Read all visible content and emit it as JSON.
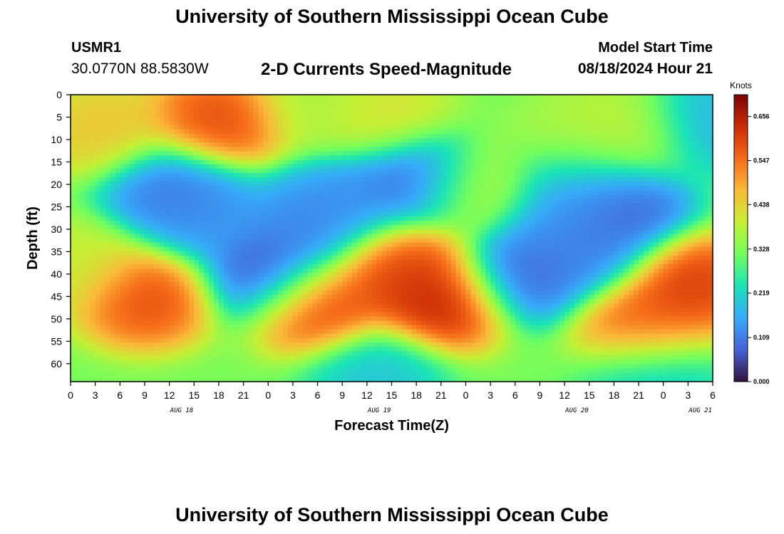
{
  "header": {
    "title": "University of Southern Mississippi Ocean Cube",
    "station_id": "USMR1",
    "station_location": "30.0770N  88.5830W",
    "subtitle": "2-D Currents Speed-Magnitude",
    "model_label": "Model Start Time",
    "model_time": "08/18/2024 Hour 21"
  },
  "footer": {
    "title": "University of Southern Mississippi Ocean Cube"
  },
  "chart_data": {
    "type": "heatmap",
    "xlabel": "Forecast Time(Z)",
    "ylabel": "Depth (ft)",
    "x_tick_labels": [
      "0",
      "3",
      "6",
      "9",
      "12",
      "15",
      "18",
      "21",
      "0",
      "3",
      "6",
      "9",
      "12",
      "15",
      "18",
      "21",
      "0",
      "3",
      "6",
      "9",
      "12",
      "15",
      "18",
      "21",
      "0",
      "3",
      "6"
    ],
    "date_labels": [
      {
        "label": "AUG 18",
        "hour_index": 4.5
      },
      {
        "label": "AUG 19",
        "hour_index": 12.5
      },
      {
        "label": "AUG 20",
        "hour_index": 20.5
      },
      {
        "label": "AUG 21",
        "hour_index": 25.5
      }
    ],
    "y_ticks": [
      0,
      5,
      10,
      15,
      20,
      25,
      30,
      35,
      40,
      45,
      50,
      55,
      60
    ],
    "ylim": [
      0,
      64
    ],
    "x_hours_range": [
      0,
      78
    ],
    "colorbar": {
      "units": "Knots",
      "ticks": [
        "0.000",
        "0.109",
        "0.219",
        "0.328",
        "0.438",
        "0.547",
        "0.656"
      ],
      "range": [
        0,
        0.71
      ],
      "colormap": [
        "#30123b",
        "#4662d7",
        "#36aaf9",
        "#1ae4b6",
        "#72fe5e",
        "#c7ef34",
        "#faba39",
        "#f66b19",
        "#cb2a04",
        "#7a0403"
      ]
    },
    "field": {
      "description_units": "knots",
      "background": 0.32,
      "features": [
        {
          "hour": 4,
          "depth": 8,
          "value": 0.47
        },
        {
          "hour": 18,
          "depth": 6,
          "value": 0.62
        },
        {
          "hour": 30,
          "depth": 2,
          "value": 0.37
        },
        {
          "hour": 38,
          "depth": 5,
          "value": 0.43
        },
        {
          "hour": 62,
          "depth": 10,
          "value": 0.38
        },
        {
          "hour": 68,
          "depth": 8,
          "value": 0.4
        },
        {
          "hour": 49,
          "depth": 21,
          "value": 0.4
        },
        {
          "hour": 12,
          "depth": 21,
          "value": 0.08
        },
        {
          "hour": 16,
          "depth": 27,
          "value": 0.12
        },
        {
          "hour": 42,
          "depth": 19,
          "value": 0.05
        },
        {
          "hour": 34,
          "depth": 24,
          "value": 0.12
        },
        {
          "hour": 29,
          "depth": 29,
          "value": 0.1
        },
        {
          "hour": 24,
          "depth": 40,
          "value": 0.03
        },
        {
          "hour": 55,
          "depth": 40,
          "value": 0.06
        },
        {
          "hour": 60,
          "depth": 29,
          "value": 0.12
        },
        {
          "hour": 67,
          "depth": 26,
          "value": 0.05
        },
        {
          "hour": 62,
          "depth": 20,
          "value": 0.16
        },
        {
          "hour": 63,
          "depth": 34,
          "value": 0.1
        },
        {
          "hour": 9,
          "depth": 45,
          "value": 0.62
        },
        {
          "hour": 1,
          "depth": 38,
          "value": 0.4
        },
        {
          "hour": 30,
          "depth": 47,
          "value": 0.64
        },
        {
          "hour": 40,
          "depth": 38,
          "value": 0.62
        },
        {
          "hour": 45,
          "depth": 46,
          "value": 0.68
        },
        {
          "hour": 75,
          "depth": 42,
          "value": 0.64
        },
        {
          "hour": 70,
          "depth": 52,
          "value": 0.6
        },
        {
          "hour": 37,
          "depth": 62,
          "value": 0.18
        },
        {
          "hour": 71,
          "depth": 62,
          "value": 0.18
        },
        {
          "hour": 77,
          "depth": 6,
          "value": 0.15
        }
      ]
    }
  }
}
